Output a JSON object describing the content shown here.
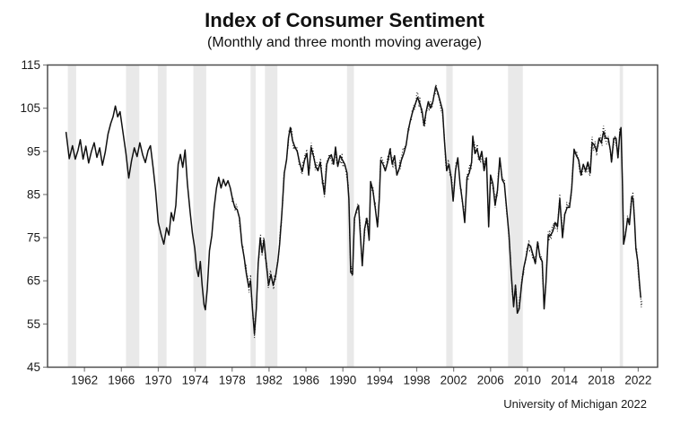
{
  "title": "Index of Consumer Sentiment",
  "subtitle": "(Monthly and three month moving average)",
  "source": "University of Michigan 2022",
  "colors": {
    "background": "#ffffff",
    "line": "#111111",
    "recession_band": "#e9e9e9",
    "frame": "#4d4d4d",
    "tick": "#808080",
    "label": "#1a1a1a"
  },
  "chart_data": {
    "type": "line",
    "title": "Index of Consumer Sentiment",
    "subtitle": "(Monthly and three month moving average)",
    "xlabel": "",
    "ylabel": "",
    "grid": false,
    "legend_position": "none",
    "x_range": [
      1958.0,
      2024.1
    ],
    "y_range": [
      45,
      115
    ],
    "x_ticks": [
      1962,
      1966,
      1970,
      1974,
      1978,
      1982,
      1986,
      1990,
      1994,
      1998,
      2002,
      2006,
      2010,
      2014,
      2018,
      2022
    ],
    "y_ticks": [
      45,
      55,
      65,
      75,
      85,
      95,
      105,
      115
    ],
    "recession_bands": [
      [
        1960.2,
        1961.1
      ],
      [
        1966.5,
        1967.95
      ],
      [
        1969.95,
        1970.9
      ],
      [
        1973.8,
        1975.2
      ],
      [
        1980.0,
        1980.55
      ],
      [
        1981.55,
        1982.9
      ],
      [
        1990.45,
        1991.2
      ],
      [
        2001.2,
        2001.9
      ],
      [
        2007.9,
        2009.5
      ],
      [
        2020.0,
        2020.35
      ]
    ],
    "series": [
      {
        "name": "three month moving average",
        "style": "solid",
        "end_year": 2022.28,
        "points": [
          [
            1960.0,
            99.5
          ],
          [
            1960.35,
            93.3
          ],
          [
            1960.7,
            96.3
          ],
          [
            1961.0,
            93.2
          ],
          [
            1961.3,
            95.2
          ],
          [
            1961.55,
            97.7
          ],
          [
            1961.85,
            93.2
          ],
          [
            1962.15,
            96.2
          ],
          [
            1962.45,
            92.3
          ],
          [
            1962.75,
            95.0
          ],
          [
            1963.05,
            97.0
          ],
          [
            1963.35,
            93.6
          ],
          [
            1963.65,
            95.8
          ],
          [
            1963.95,
            91.8
          ],
          [
            1964.25,
            94.8
          ],
          [
            1964.55,
            99.0
          ],
          [
            1964.85,
            101.5
          ],
          [
            1965.1,
            103.0
          ],
          [
            1965.35,
            105.5
          ],
          [
            1965.6,
            103.0
          ],
          [
            1965.85,
            104.2
          ],
          [
            1966.15,
            99.8
          ],
          [
            1966.5,
            94.5
          ],
          [
            1966.8,
            88.8
          ],
          [
            1967.1,
            92.8
          ],
          [
            1967.4,
            95.8
          ],
          [
            1967.7,
            93.8
          ],
          [
            1968.0,
            97.0
          ],
          [
            1968.3,
            94.2
          ],
          [
            1968.6,
            92.4
          ],
          [
            1968.9,
            95.2
          ],
          [
            1969.15,
            96.3
          ],
          [
            1969.45,
            91.0
          ],
          [
            1969.7,
            86.0
          ],
          [
            1970.0,
            78.5
          ],
          [
            1970.3,
            75.8
          ],
          [
            1970.6,
            73.5
          ],
          [
            1970.9,
            77.3
          ],
          [
            1971.15,
            75.6
          ],
          [
            1971.4,
            80.8
          ],
          [
            1971.65,
            78.9
          ],
          [
            1971.9,
            82.5
          ],
          [
            1972.15,
            92.0
          ],
          [
            1972.4,
            94.3
          ],
          [
            1972.65,
            91.3
          ],
          [
            1972.9,
            95.3
          ],
          [
            1973.15,
            87.5
          ],
          [
            1973.45,
            81.0
          ],
          [
            1973.7,
            76.0
          ],
          [
            1973.95,
            72.5
          ],
          [
            1974.15,
            68.0
          ],
          [
            1974.35,
            66.0
          ],
          [
            1974.55,
            69.5
          ],
          [
            1974.75,
            64.0
          ],
          [
            1974.95,
            59.5
          ],
          [
            1975.1,
            58.3
          ],
          [
            1975.3,
            63.0
          ],
          [
            1975.55,
            72.0
          ],
          [
            1975.8,
            75.5
          ],
          [
            1976.05,
            82.0
          ],
          [
            1976.3,
            86.5
          ],
          [
            1976.55,
            89.0
          ],
          [
            1976.8,
            86.5
          ],
          [
            1977.05,
            88.5
          ],
          [
            1977.3,
            87.0
          ],
          [
            1977.55,
            88.2
          ],
          [
            1977.8,
            86.5
          ],
          [
            1978.05,
            83.8
          ],
          [
            1978.3,
            82.0
          ],
          [
            1978.55,
            81.5
          ],
          [
            1978.8,
            79.5
          ],
          [
            1979.05,
            73.5
          ],
          [
            1979.3,
            70.5
          ],
          [
            1979.55,
            66.5
          ],
          [
            1979.8,
            63.5
          ],
          [
            1980.0,
            65.0
          ],
          [
            1980.2,
            58.5
          ],
          [
            1980.42,
            52.7
          ],
          [
            1980.62,
            58.5
          ],
          [
            1980.82,
            69.0
          ],
          [
            1981.05,
            75.0
          ],
          [
            1981.25,
            71.5
          ],
          [
            1981.45,
            74.5
          ],
          [
            1981.7,
            69.0
          ],
          [
            1981.95,
            64.0
          ],
          [
            1982.2,
            66.5
          ],
          [
            1982.45,
            64.0
          ],
          [
            1982.7,
            66.0
          ],
          [
            1982.95,
            69.5
          ],
          [
            1983.15,
            73.5
          ],
          [
            1983.4,
            81.0
          ],
          [
            1983.65,
            90.0
          ],
          [
            1983.9,
            93.0
          ],
          [
            1984.1,
            98.0
          ],
          [
            1984.3,
            100.5
          ],
          [
            1984.55,
            97.5
          ],
          [
            1984.8,
            96.0
          ],
          [
            1985.05,
            95.0
          ],
          [
            1985.3,
            92.5
          ],
          [
            1985.6,
            90.3
          ],
          [
            1985.85,
            93.0
          ],
          [
            1986.1,
            94.5
          ],
          [
            1986.3,
            89.5
          ],
          [
            1986.55,
            96.0
          ],
          [
            1986.8,
            94.0
          ],
          [
            1987.05,
            91.5
          ],
          [
            1987.3,
            90.5
          ],
          [
            1987.55,
            92.5
          ],
          [
            1987.8,
            88.0
          ],
          [
            1988.0,
            85.0
          ],
          [
            1988.25,
            92.0
          ],
          [
            1988.5,
            93.5
          ],
          [
            1988.75,
            94.2
          ],
          [
            1989.0,
            92.0
          ],
          [
            1989.2,
            96.0
          ],
          [
            1989.45,
            91.5
          ],
          [
            1989.7,
            94.0
          ],
          [
            1989.95,
            93.0
          ],
          [
            1990.2,
            92.0
          ],
          [
            1990.45,
            90.0
          ],
          [
            1990.65,
            84.0
          ],
          [
            1990.85,
            67.0
          ],
          [
            1991.05,
            66.5
          ],
          [
            1991.25,
            79.5
          ],
          [
            1991.5,
            81.5
          ],
          [
            1991.7,
            82.5
          ],
          [
            1991.9,
            75.5
          ],
          [
            1992.1,
            68.5
          ],
          [
            1992.35,
            77.0
          ],
          [
            1992.6,
            79.5
          ],
          [
            1992.85,
            74.5
          ],
          [
            1993.0,
            88.0
          ],
          [
            1993.25,
            86.0
          ],
          [
            1993.5,
            82.0
          ],
          [
            1993.75,
            77.5
          ],
          [
            1993.95,
            84.0
          ],
          [
            1994.1,
            93.0
          ],
          [
            1994.35,
            92.0
          ],
          [
            1994.6,
            90.5
          ],
          [
            1994.85,
            92.5
          ],
          [
            1995.1,
            95.5
          ],
          [
            1995.35,
            92.0
          ],
          [
            1995.6,
            94.0
          ],
          [
            1995.85,
            89.5
          ],
          [
            1996.1,
            91.0
          ],
          [
            1996.35,
            93.0
          ],
          [
            1996.6,
            94.5
          ],
          [
            1996.85,
            96.5
          ],
          [
            1997.1,
            100.0
          ],
          [
            1997.35,
            102.5
          ],
          [
            1997.6,
            104.5
          ],
          [
            1997.85,
            106.0
          ],
          [
            1998.1,
            107.5
          ],
          [
            1998.35,
            106.0
          ],
          [
            1998.6,
            104.0
          ],
          [
            1998.8,
            101.0
          ],
          [
            1999.0,
            104.0
          ],
          [
            1999.25,
            106.5
          ],
          [
            1999.5,
            105.0
          ],
          [
            1999.75,
            106.5
          ],
          [
            2000.05,
            110.0
          ],
          [
            2000.3,
            108.5
          ],
          [
            2000.55,
            106.5
          ],
          [
            2000.8,
            104.5
          ],
          [
            2001.0,
            97.5
          ],
          [
            2001.25,
            90.5
          ],
          [
            2001.5,
            92.0
          ],
          [
            2001.75,
            88.5
          ],
          [
            2001.95,
            83.5
          ],
          [
            2002.2,
            90.5
          ],
          [
            2002.45,
            93.5
          ],
          [
            2002.7,
            87.5
          ],
          [
            2002.95,
            83.5
          ],
          [
            2003.2,
            78.5
          ],
          [
            2003.45,
            89.0
          ],
          [
            2003.7,
            90.0
          ],
          [
            2003.95,
            92.5
          ],
          [
            2004.08,
            98.5
          ],
          [
            2004.3,
            94.5
          ],
          [
            2004.55,
            95.5
          ],
          [
            2004.8,
            93.0
          ],
          [
            2005.05,
            95.0
          ],
          [
            2005.3,
            90.5
          ],
          [
            2005.55,
            93.5
          ],
          [
            2005.8,
            77.5
          ],
          [
            2006.0,
            89.5
          ],
          [
            2006.25,
            87.5
          ],
          [
            2006.5,
            82.5
          ],
          [
            2006.75,
            86.0
          ],
          [
            2007.0,
            93.5
          ],
          [
            2007.25,
            88.5
          ],
          [
            2007.5,
            87.5
          ],
          [
            2007.75,
            81.5
          ],
          [
            2008.0,
            75.5
          ],
          [
            2008.25,
            66.5
          ],
          [
            2008.5,
            59.0
          ],
          [
            2008.7,
            64.0
          ],
          [
            2008.9,
            57.5
          ],
          [
            2009.1,
            58.5
          ],
          [
            2009.35,
            64.0
          ],
          [
            2009.6,
            68.0
          ],
          [
            2009.85,
            70.5
          ],
          [
            2010.1,
            73.5
          ],
          [
            2010.35,
            73.0
          ],
          [
            2010.6,
            71.0
          ],
          [
            2010.85,
            69.0
          ],
          [
            2011.1,
            74.0
          ],
          [
            2011.35,
            70.5
          ],
          [
            2011.6,
            69.5
          ],
          [
            2011.8,
            58.5
          ],
          [
            2012.0,
            64.5
          ],
          [
            2012.25,
            75.5
          ],
          [
            2012.5,
            75.5
          ],
          [
            2012.75,
            76.5
          ],
          [
            2013.0,
            78.5
          ],
          [
            2013.25,
            77.5
          ],
          [
            2013.5,
            84.0
          ],
          [
            2013.8,
            75.0
          ],
          [
            2014.05,
            80.5
          ],
          [
            2014.3,
            82.0
          ],
          [
            2014.55,
            82.0
          ],
          [
            2014.8,
            86.5
          ],
          [
            2015.05,
            95.5
          ],
          [
            2015.3,
            94.0
          ],
          [
            2015.55,
            93.0
          ],
          [
            2015.8,
            89.5
          ],
          [
            2016.05,
            92.0
          ],
          [
            2016.3,
            90.5
          ],
          [
            2016.55,
            92.5
          ],
          [
            2016.8,
            90.0
          ],
          [
            2017.0,
            97.0
          ],
          [
            2017.25,
            96.5
          ],
          [
            2017.5,
            95.0
          ],
          [
            2017.75,
            98.0
          ],
          [
            2018.0,
            97.0
          ],
          [
            2018.25,
            99.5
          ],
          [
            2018.5,
            98.0
          ],
          [
            2018.75,
            98.0
          ],
          [
            2019.0,
            95.0
          ],
          [
            2019.1,
            92.5
          ],
          [
            2019.35,
            98.0
          ],
          [
            2019.6,
            98.0
          ],
          [
            2019.8,
            93.5
          ],
          [
            2020.0,
            99.0
          ],
          [
            2020.13,
            100.5
          ],
          [
            2020.3,
            87.0
          ],
          [
            2020.42,
            73.5
          ],
          [
            2020.6,
            75.5
          ],
          [
            2020.85,
            79.5
          ],
          [
            2021.05,
            78.0
          ],
          [
            2021.3,
            84.5
          ],
          [
            2021.45,
            84.0
          ],
          [
            2021.6,
            79.0
          ],
          [
            2021.75,
            72.5
          ],
          [
            2021.95,
            69.5
          ],
          [
            2022.1,
            65.5
          ],
          [
            2022.25,
            61.5
          ],
          [
            2022.45,
            58.5
          ]
        ]
      },
      {
        "name": "monthly",
        "style": "dotted",
        "derived": "ma_plus_noise",
        "noise_amplitude": 1.6,
        "start_year": 1978.0,
        "end_year": 2022.45
      }
    ]
  }
}
